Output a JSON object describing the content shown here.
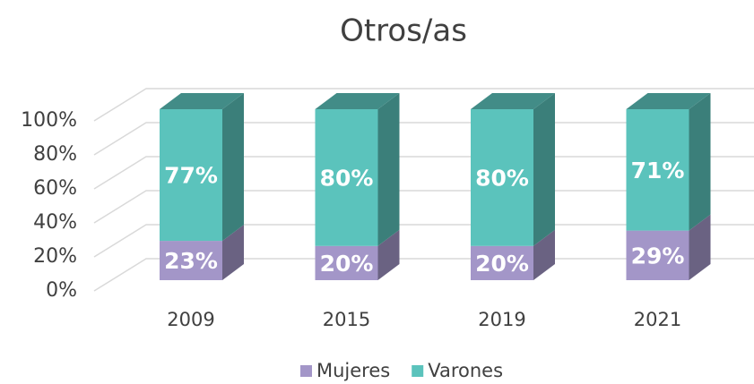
{
  "chart_data": {
    "type": "bar3d_stacked",
    "title": "Otros/as",
    "categories": [
      "2009",
      "2015",
      "2019",
      "2021"
    ],
    "series": [
      {
        "name": "Mujeres",
        "color": "#a396c8",
        "values": [
          23,
          20,
          20,
          29
        ],
        "value_labels": [
          "23%",
          "20%",
          "20%",
          "29%"
        ]
      },
      {
        "name": "Varones",
        "color": "#5bc3bc",
        "values": [
          77,
          80,
          80,
          71
        ],
        "value_labels": [
          "77%",
          "80%",
          "80%",
          "71%"
        ]
      }
    ],
    "ylim": [
      0,
      100
    ],
    "yticks": [
      {
        "value": 0,
        "label": "0%"
      },
      {
        "value": 20,
        "label": "20%"
      },
      {
        "value": 40,
        "label": "40%"
      },
      {
        "value": 60,
        "label": "60%"
      },
      {
        "value": 80,
        "label": "80%"
      },
      {
        "value": 100,
        "label": "100%"
      }
    ],
    "grid": true,
    "legend": "bottom"
  }
}
